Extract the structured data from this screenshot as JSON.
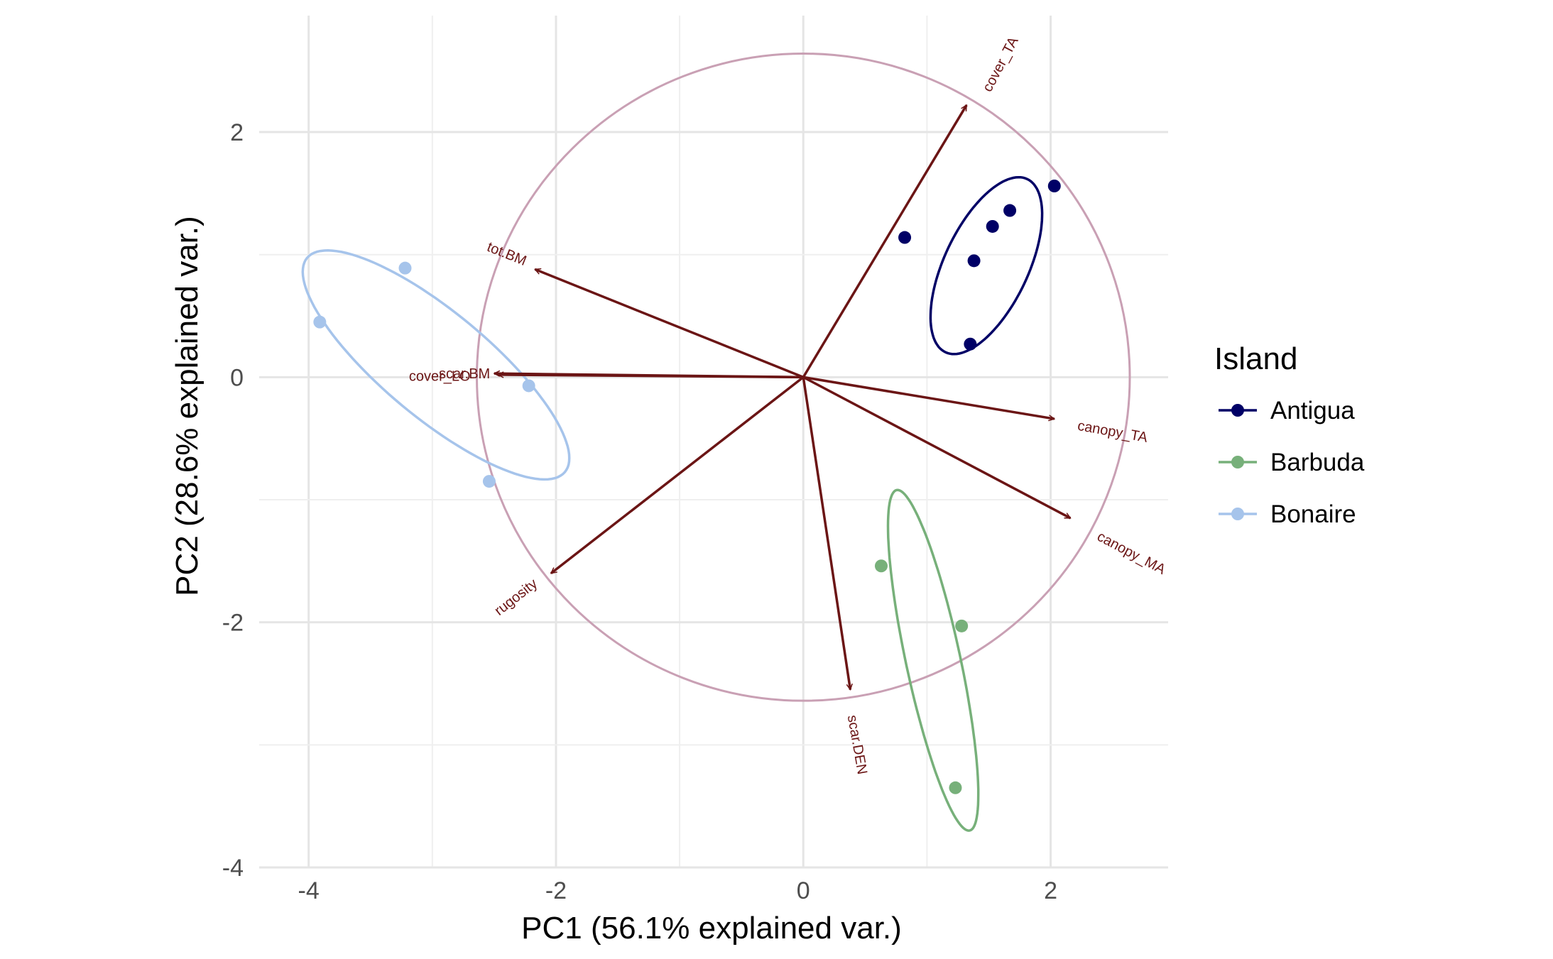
{
  "chart_data": {
    "type": "scatter",
    "subtype": "pca-biplot",
    "xlabel": "PC1 (56.1% explained var.)",
    "ylabel": "PC2 (28.6% explained var.)",
    "xlim": [
      -4.4,
      2.95
    ],
    "ylim": [
      -4.0,
      2.95
    ],
    "x_ticks": [
      -4,
      -2,
      0,
      2
    ],
    "y_ticks": [
      -4,
      -2,
      0,
      2
    ],
    "grid": true,
    "legend": {
      "title": "Island",
      "position": "right",
      "entries": [
        "Antigua",
        "Barbuda",
        "Bonaire"
      ]
    },
    "series": [
      {
        "name": "Antigua",
        "color": "#000066",
        "points": [
          [
            0.82,
            1.14
          ],
          [
            1.38,
            0.95
          ],
          [
            1.53,
            1.23
          ],
          [
            1.67,
            1.36
          ],
          [
            2.03,
            1.56
          ],
          [
            1.35,
            0.27
          ]
        ],
        "ellipse": {
          "cx": 1.48,
          "cy": 0.91,
          "rx": 0.78,
          "ry": 0.34,
          "angle_deg": 65
        }
      },
      {
        "name": "Barbuda",
        "color": "#77b07a",
        "points": [
          [
            0.63,
            -1.54
          ],
          [
            1.28,
            -2.03
          ],
          [
            1.23,
            -3.35
          ]
        ],
        "ellipse": {
          "cx": 1.05,
          "cy": -2.31,
          "rx": 1.42,
          "ry": 0.22,
          "angle_deg": -78
        }
      },
      {
        "name": "Bonaire",
        "color": "#a6c4eb",
        "points": [
          [
            -3.22,
            0.89
          ],
          [
            -3.91,
            0.45
          ],
          [
            -2.22,
            -0.07
          ],
          [
            -2.54,
            -0.85
          ]
        ],
        "ellipse": {
          "cx": -2.97,
          "cy": 0.1,
          "rx": 1.36,
          "ry": 0.43,
          "angle_deg": -40
        }
      }
    ],
    "circle": {
      "cx": 0,
      "cy": 0,
      "r": 2.64,
      "color": "#c9a0b4"
    },
    "loadings": {
      "color": "#6b1515",
      "arrows": [
        {
          "label": "cover_TA",
          "x": 1.32,
          "y": 2.22
        },
        {
          "label": "tot.BM",
          "x": -2.17,
          "y": 0.88
        },
        {
          "label": "scar.BM",
          "x": -2.5,
          "y": 0.03
        },
        {
          "label": "cover_LO",
          "x": -2.47,
          "y": 0.02
        },
        {
          "label": "canopy_TA",
          "x": 2.03,
          "y": -0.34
        },
        {
          "label": "canopy_MA",
          "x": 2.16,
          "y": -1.15
        },
        {
          "label": "rugosity",
          "x": -2.04,
          "y": -1.6
        },
        {
          "label": "scar.DEN",
          "x": 0.38,
          "y": -2.55
        }
      ],
      "label_positions": [
        {
          "label": "cover_TA",
          "x": 1.6,
          "y": 2.55,
          "rotate": -62
        },
        {
          "label": "tot.BM",
          "x": -2.4,
          "y": 1.0,
          "rotate": 22
        },
        {
          "label": "scar.BM",
          "x": -2.74,
          "y": 0.02,
          "rotate": 0
        },
        {
          "label": "cover_LO",
          "x": -2.94,
          "y": 0.0,
          "rotate": 0
        },
        {
          "label": "canopy_TA",
          "x": 2.5,
          "y": -0.45,
          "rotate": 10
        },
        {
          "label": "canopy_MA",
          "x": 2.65,
          "y": -1.44,
          "rotate": 28
        },
        {
          "label": "rugosity",
          "x": -2.32,
          "y": -1.8,
          "rotate": -38
        },
        {
          "label": "scar.DEN",
          "x": 0.43,
          "y": -3.0,
          "rotate": 80
        }
      ]
    }
  }
}
